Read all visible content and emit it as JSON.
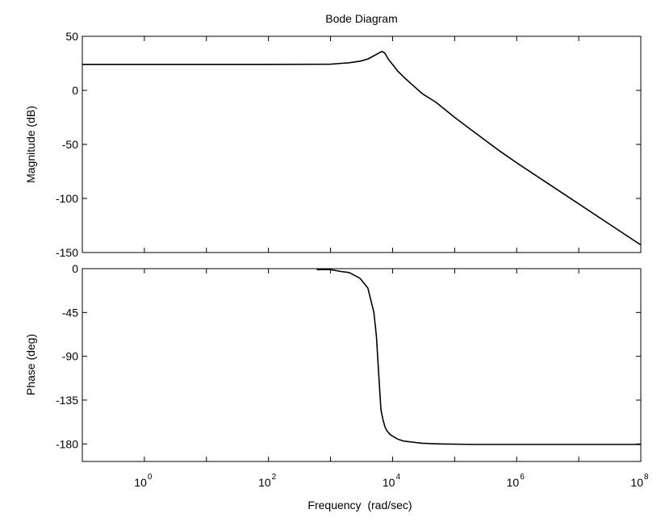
{
  "chart_data": {
    "type": "line",
    "title": "Bode Diagram",
    "xlabel": "Frequency  (rad/sec)",
    "x_scale": "log",
    "xlim": [
      0.1,
      100000000
    ],
    "xticks": [
      {
        "value": 1,
        "base": "10",
        "exp": "0"
      },
      {
        "value": 100,
        "base": "10",
        "exp": "2"
      },
      {
        "value": 10000,
        "base": "10",
        "exp": "4"
      },
      {
        "value": 1000000,
        "base": "10",
        "exp": "6"
      },
      {
        "value": 100000000,
        "base": "10",
        "exp": "8"
      }
    ],
    "grid": false,
    "panels": [
      {
        "name": "magnitude",
        "ylabel": "Magnitude (dB)",
        "ylim": [
          -150,
          50
        ],
        "yticks": [
          50,
          0,
          -50,
          -100,
          -150
        ],
        "series": [
          {
            "x": [
              0.1,
              1,
              10,
              100,
              1000,
              1500,
              2000,
              3000,
              4000,
              5000,
              6000,
              6800,
              7500,
              8500,
              10000,
              12000,
              16000,
              20000,
              30000,
              50000,
              100000,
              200000,
              500000,
              1000000,
              10000000,
              100000000
            ],
            "y": [
              24,
              24,
              24,
              24,
              24.2,
              25,
              25.5,
              27,
              29,
              32,
              34.5,
              36,
              34.5,
              29,
              24,
              18,
              11,
              6,
              -3,
              -11,
              -25,
              -38,
              -55,
              -67,
              -105,
              -143
            ]
          }
        ]
      },
      {
        "name": "phase",
        "ylabel": "Phase (deg)",
        "ylim": [
          -198,
          0
        ],
        "yticks": [
          0,
          -45,
          -90,
          -135,
          -180
        ],
        "series": [
          {
            "x": [
              600,
              1000,
              1500,
              2000,
              3000,
              4000,
              5000,
              5500,
              6000,
              6500,
              7000,
              7500,
              8000,
              9000,
              10000,
              12000,
              15000,
              20000,
              30000,
              60000,
              200000,
              1000000,
              100000000
            ],
            "y": [
              -1,
              -1,
              -3,
              -4,
              -10,
              -20,
              -45,
              -70,
              -110,
              -145,
              -155,
              -162,
              -166,
              -170,
              -172,
              -175,
              -177,
              -178,
              -179.3,
              -180,
              -180.5,
              -180.5,
              -180.5
            ]
          }
        ]
      }
    ]
  }
}
